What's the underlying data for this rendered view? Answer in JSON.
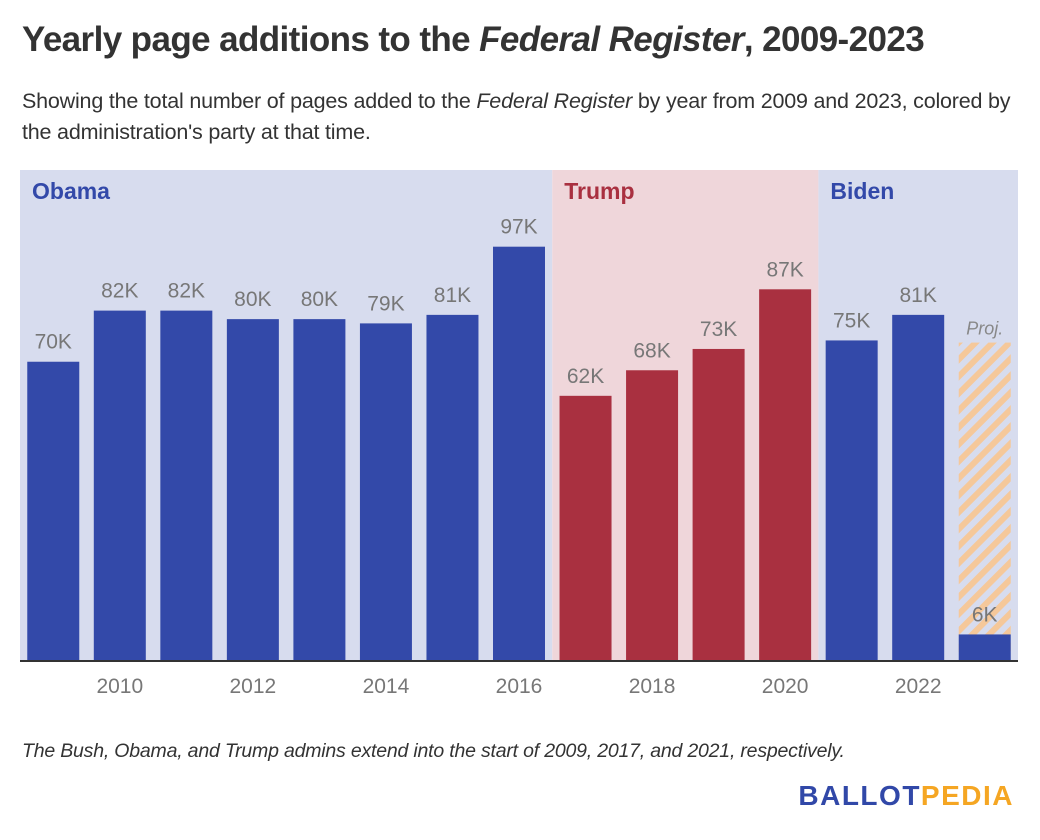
{
  "header": {
    "title_pre": "Yearly page additions to the ",
    "title_em": "Federal Register",
    "title_post": ", 2009-2023",
    "subtitle_pre": "Showing the total number of pages added to the ",
    "subtitle_em": "Federal Register",
    "subtitle_post": " by year from 2009 and 2023, colored by the administration's party at that time."
  },
  "footnote": "The Bush, Obama, and Trump admins extend into the start of 2009, 2017, and 2021, respectively.",
  "logo": {
    "part1": "BALLOT",
    "part2": "PEDIA"
  },
  "colors": {
    "dem_bar": "#3349a9",
    "rep_bar": "#a93040",
    "dem_band": "#d7dcee",
    "rep_band": "#efd6da",
    "projection": "#f5c89a",
    "label": "#777777"
  },
  "chart_data": {
    "type": "bar",
    "title": "Yearly page additions to the Federal Register, 2009-2023",
    "xlabel": "",
    "ylabel": "",
    "ylim": [
      0,
      115000
    ],
    "grid": false,
    "categories": [
      2009,
      2010,
      2011,
      2012,
      2013,
      2014,
      2015,
      2016,
      2017,
      2018,
      2019,
      2020,
      2021,
      2022,
      2023
    ],
    "values": [
      70000,
      82000,
      82000,
      80000,
      80000,
      79000,
      81000,
      97000,
      62000,
      68000,
      73000,
      87000,
      75000,
      81000,
      6000
    ],
    "labels": [
      "70K",
      "82K",
      "82K",
      "80K",
      "80K",
      "79K",
      "81K",
      "97K",
      "62K",
      "68K",
      "73K",
      "87K",
      "75K",
      "81K",
      "6K"
    ],
    "party": [
      "D",
      "D",
      "D",
      "D",
      "D",
      "D",
      "D",
      "D",
      "R",
      "R",
      "R",
      "R",
      "D",
      "D",
      "D"
    ],
    "x_ticks": [
      2010,
      2012,
      2014,
      2016,
      2018,
      2020,
      2022
    ],
    "projection": {
      "year": 2023,
      "value": 74500,
      "label": "Proj."
    },
    "administrations": [
      {
        "name": "Obama",
        "party": "D",
        "start": 2009,
        "end": 2016
      },
      {
        "name": "Trump",
        "party": "R",
        "start": 2017,
        "end": 2020
      },
      {
        "name": "Biden",
        "party": "D",
        "start": 2021,
        "end": 2023
      }
    ]
  }
}
